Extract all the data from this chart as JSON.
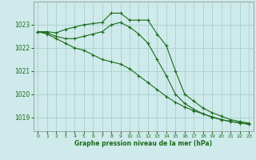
{
  "bg_color": "#ceeaea",
  "grid_color": "#aacfcf",
  "line_color": "#1a6b1a",
  "xlabel": "Graphe pression niveau de la mer (hPa)",
  "xlim": [
    -0.5,
    23.5
  ],
  "ylim": [
    1018.4,
    1024.0
  ],
  "yticks": [
    1019,
    1020,
    1021,
    1022,
    1023
  ],
  "xticks": [
    0,
    1,
    2,
    3,
    4,
    5,
    6,
    7,
    8,
    9,
    10,
    11,
    12,
    13,
    14,
    15,
    16,
    17,
    18,
    19,
    20,
    21,
    22,
    23
  ],
  "series": [
    {
      "x": [
        0,
        1,
        2,
        3,
        4,
        5,
        6,
        7,
        8,
        9,
        10,
        11,
        12,
        13,
        14,
        15,
        16,
        17,
        18,
        19,
        20,
        21,
        22,
        23
      ],
      "y": [
        1022.7,
        1022.7,
        1022.65,
        1022.8,
        1022.9,
        1023.0,
        1023.05,
        1023.1,
        1023.5,
        1023.5,
        1023.2,
        1023.2,
        1023.2,
        1022.6,
        1022.1,
        1021.0,
        1020.0,
        1019.7,
        1019.4,
        1019.2,
        1019.05,
        1018.9,
        1018.82,
        1018.75
      ]
    },
    {
      "x": [
        0,
        1,
        2,
        3,
        4,
        5,
        6,
        7,
        8,
        9,
        10,
        11,
        12,
        13,
        14,
        15,
        16,
        17,
        18,
        19,
        20,
        21,
        22,
        23
      ],
      "y": [
        1022.7,
        1022.65,
        1022.5,
        1022.4,
        1022.4,
        1022.5,
        1022.6,
        1022.7,
        1023.0,
        1023.1,
        1022.9,
        1022.6,
        1022.2,
        1021.5,
        1020.8,
        1020.0,
        1019.6,
        1019.35,
        1019.15,
        1019.0,
        1018.9,
        1018.82,
        1018.76,
        1018.7
      ]
    },
    {
      "x": [
        0,
        1,
        2,
        3,
        4,
        5,
        6,
        7,
        8,
        9,
        10,
        11,
        12,
        13,
        14,
        15,
        16,
        17,
        18,
        19,
        20,
        21,
        22,
        23
      ],
      "y": [
        1022.7,
        1022.6,
        1022.4,
        1022.2,
        1022.0,
        1021.9,
        1021.7,
        1021.5,
        1021.4,
        1021.3,
        1021.1,
        1020.8,
        1020.5,
        1020.2,
        1019.9,
        1019.65,
        1019.45,
        1019.28,
        1019.15,
        1019.02,
        1018.9,
        1018.82,
        1018.76,
        1018.7
      ]
    }
  ]
}
